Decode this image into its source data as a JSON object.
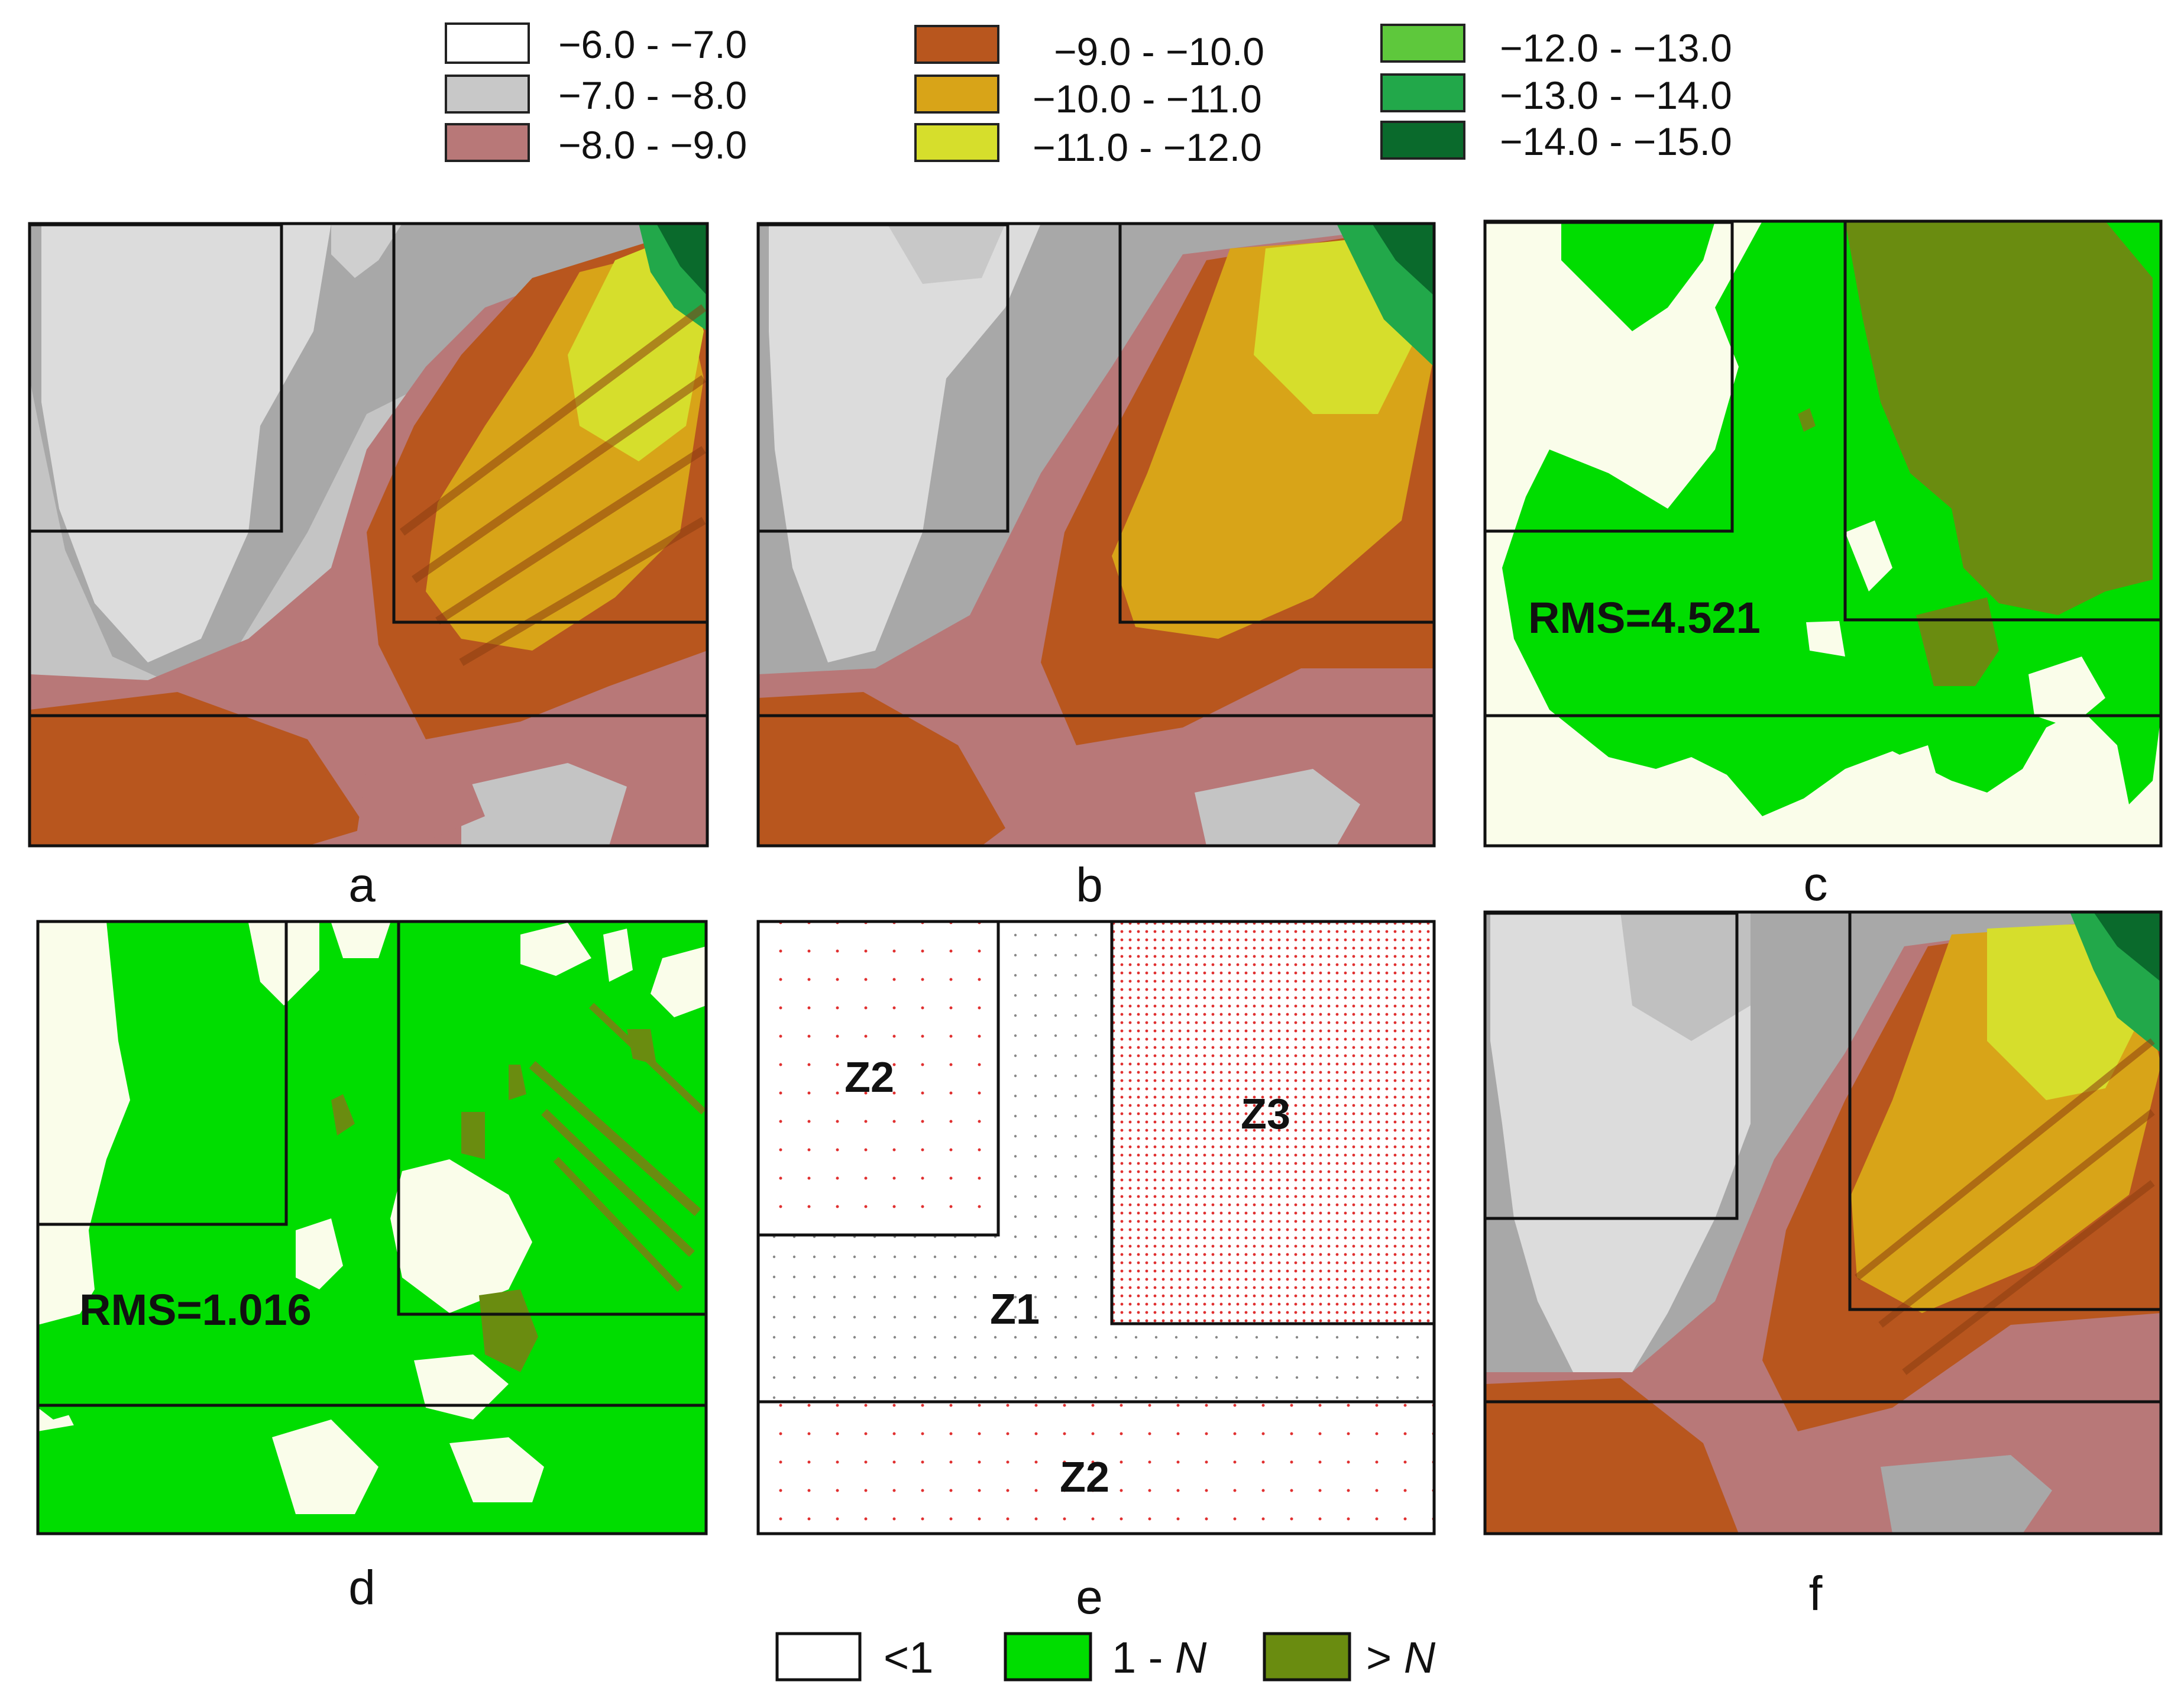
{
  "depth_legend": {
    "items": [
      {
        "label": "−6.0 - −7.0",
        "color": "#ffffff"
      },
      {
        "label": "−7.0 - −8.0",
        "color": "#c8c8c8"
      },
      {
        "label": "−8.0 - −9.0",
        "color": "#b87878"
      },
      {
        "label": "−9.0 - −10.0",
        "color": "#b8561e"
      },
      {
        "label": "−10.0 - −11.0",
        "color": "#d8a418"
      },
      {
        "label": "−11.0 - −12.0",
        "color": "#d6de2c"
      },
      {
        "label": "−12.0 - −13.0",
        "color": "#5ec83c"
      },
      {
        "label": "−13.0 - −14.0",
        "color": "#22a84a"
      },
      {
        "label": "−14.0 - −15.0",
        "color": "#0a6a2c"
      }
    ]
  },
  "panels": {
    "a": {
      "letter": "a"
    },
    "b": {
      "letter": "b"
    },
    "c": {
      "letter": "c",
      "rms": "RMS=4.521"
    },
    "d": {
      "letter": "d",
      "rms": "RMS=1.016"
    },
    "e": {
      "letter": "e",
      "zones": {
        "z2_top": "Z2",
        "z3": "Z3",
        "z1": "Z1",
        "z2_bottom": "Z2"
      }
    },
    "f": {
      "letter": "f"
    }
  },
  "density_legend": {
    "items": [
      {
        "label": "<1",
        "color": "#ffffff"
      },
      {
        "label": "1 - ",
        "label_italic": "N",
        "color": "#00dd00"
      },
      {
        "label": "> ",
        "label_italic": "N",
        "color": "#6a8c10"
      }
    ]
  },
  "colors": {
    "bg_map": "#fafdea",
    "green": "#00dd00",
    "olive": "#6a8c10",
    "red_dots": "#e03030",
    "frame": "#111111"
  }
}
